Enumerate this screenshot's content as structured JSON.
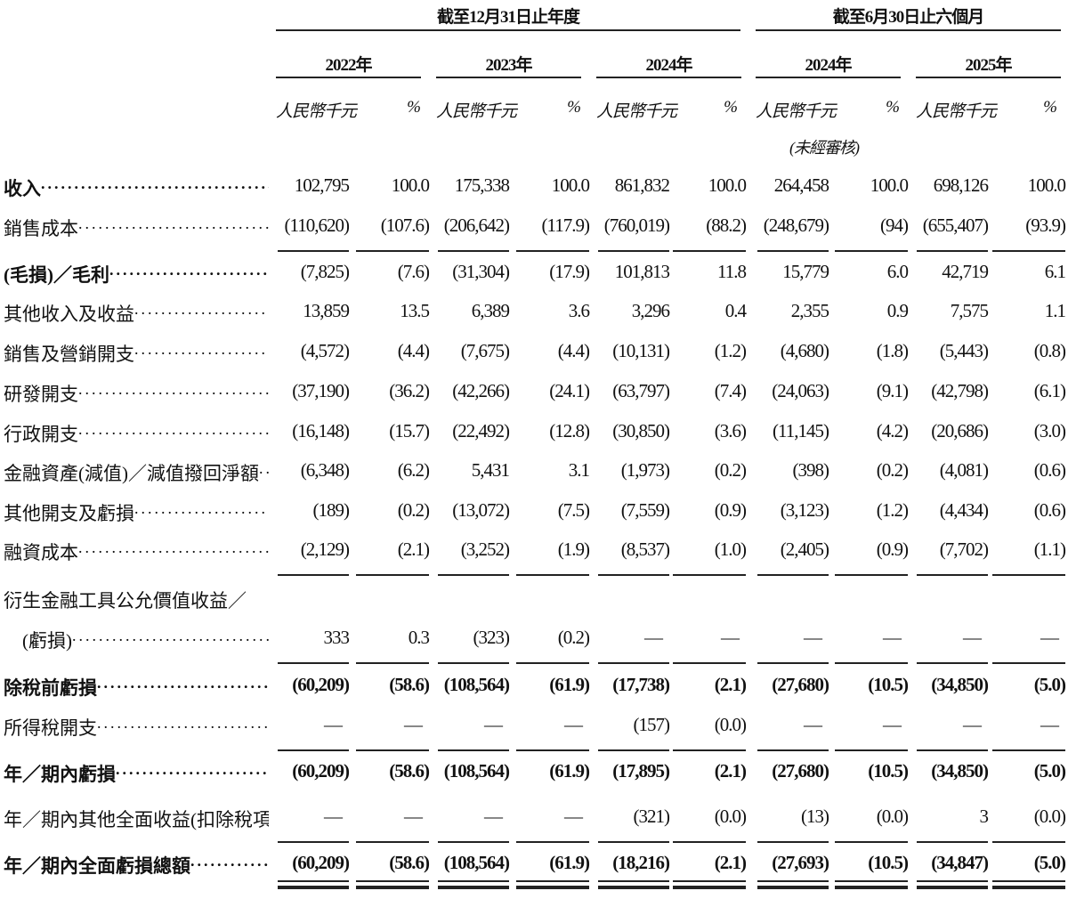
{
  "header": {
    "group_fy": "截至12月31日止年度",
    "group_h1": "截至6月30日止六個月",
    "years": [
      "2022年",
      "2023年",
      "2024年",
      "2024年",
      "2025年"
    ],
    "unit_amount": "人民幣千元",
    "unit_pct": "%",
    "unaudited": "(未經審核)"
  },
  "rows": [
    {
      "label": "收入",
      "bold": true,
      "values": [
        "102,795",
        "100.0",
        "175,338",
        "100.0",
        "861,832",
        "100.0",
        "264,458",
        "100.0",
        "698,126",
        "100.0"
      ]
    },
    {
      "label": "銷售成本 ",
      "values": [
        "(110,620)",
        "(107.6)",
        "(206,642)",
        "(117.9)",
        "(760,019)",
        "(88.2)",
        "(248,679)",
        "(94)",
        "(655,407)",
        "(93.9)"
      ],
      "underline": "single"
    },
    {
      "label": "(毛損)／毛利 ",
      "bold": true,
      "values": [
        "(7,825)",
        "(7.6)",
        "(31,304)",
        "(17.9)",
        "101,813",
        "11.8",
        "15,779",
        "6.0",
        "42,719",
        "6.1"
      ]
    },
    {
      "label": "其他收入及收益",
      "values": [
        "13,859",
        "13.5",
        "6,389",
        "3.6",
        "3,296",
        "0.4",
        "2,355",
        "0.9",
        "7,575",
        "1.1"
      ]
    },
    {
      "label": "銷售及營銷開支",
      "values": [
        "(4,572)",
        "(4.4)",
        "(7,675)",
        "(4.4)",
        "(10,131)",
        "(1.2)",
        "(4,680)",
        "(1.8)",
        "(5,443)",
        "(0.8)"
      ]
    },
    {
      "label": "研發開支 ",
      "values": [
        "(37,190)",
        "(36.2)",
        "(42,266)",
        "(24.1)",
        "(63,797)",
        "(7.4)",
        "(24,063)",
        "(9.1)",
        "(42,798)",
        "(6.1)"
      ]
    },
    {
      "label": "行政開支 ",
      "values": [
        "(16,148)",
        "(15.7)",
        "(22,492)",
        "(12.8)",
        "(30,850)",
        "(3.6)",
        "(11,145)",
        "(4.2)",
        "(20,686)",
        "(3.0)"
      ]
    },
    {
      "label": "金融資產(減值)／減值撥回淨額",
      "values": [
        "(6,348)",
        "(6.2)",
        "5,431",
        "3.1",
        "(1,973)",
        "(0.2)",
        "(398)",
        "(0.2)",
        "(4,081)",
        "(0.6)"
      ]
    },
    {
      "label": "其他開支及虧損",
      "values": [
        "(189)",
        "(0.2)",
        "(13,072)",
        "(7.5)",
        "(7,559)",
        "(0.9)",
        "(3,123)",
        "(1.2)",
        "(4,434)",
        "(0.6)"
      ]
    },
    {
      "label": "融資成本 ",
      "values": [
        "(2,129)",
        "(2.1)",
        "(3,252)",
        "(1.9)",
        "(8,537)",
        "(1.0)",
        "(2,405)",
        "(0.9)",
        "(7,702)",
        "(1.1)"
      ],
      "underline": "single"
    },
    {
      "label": "衍生金融工具公允價值收益／",
      "nodots": true,
      "values": []
    },
    {
      "label": "　(虧損) ",
      "values": [
        "333",
        "0.3",
        "(323)",
        "(0.2)",
        "—",
        "—",
        "—",
        "—",
        "—",
        "—"
      ],
      "underline": "single"
    },
    {
      "label": "除稅前虧損",
      "bold": true,
      "boldvalues": true,
      "values": [
        "(60,209)",
        "(58.6)",
        "(108,564)",
        "(61.9)",
        "(17,738)",
        "(2.1)",
        "(27,680)",
        "(10.5)",
        "(34,850)",
        "(5.0)"
      ]
    },
    {
      "label": "所得稅開支",
      "values": [
        "—",
        "—",
        "—",
        "—",
        "(157)",
        "(0.0)",
        "—",
        "—",
        "—",
        "—"
      ],
      "underline": "single"
    },
    {
      "label": "年／期內虧損",
      "bold": true,
      "boldvalues": true,
      "values": [
        "(60,209)",
        "(58.6)",
        "(108,564)",
        "(61.9)",
        "(17,895)",
        "(2.1)",
        "(27,680)",
        "(10.5)",
        "(34,850)",
        "(5.0)"
      ]
    },
    {
      "label": "年／期內其他全面收益(扣除稅項)",
      "values": [
        "—",
        "—",
        "—",
        "—",
        "(321)",
        "(0.0)",
        "(13)",
        "(0.0)",
        "3",
        "(0.0)"
      ],
      "underline": "single"
    },
    {
      "label": "年／期內全面虧損總額",
      "bold": true,
      "boldvalues": true,
      "values": [
        "(60,209)",
        "(58.6)",
        "(108,564)",
        "(61.9)",
        "(18,216)",
        "(2.1)",
        "(27,693)",
        "(10.5)",
        "(34,847)",
        "(5.0)"
      ],
      "underline": "double"
    }
  ]
}
